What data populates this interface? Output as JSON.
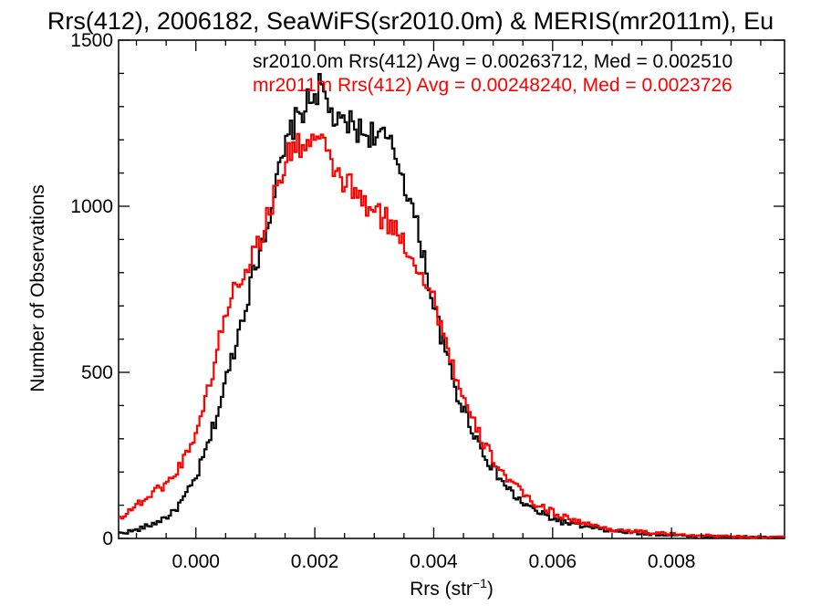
{
  "chart_data": {
    "type": "line",
    "title": "Rrs(412), 2006182, SeaWiFS(sr2010.0m) & MERIS(mr2011m), Eu",
    "xlabel": "Rrs (str",
    "xlabel_sup": "−1",
    "xlabel_close": ")",
    "ylabel": "Number of Observations",
    "xlim": [
      -0.0013,
      0.0099
    ],
    "ylim": [
      0,
      1500
    ],
    "x_ticks": [
      0.0,
      0.002,
      0.004,
      0.006,
      0.008
    ],
    "x_tick_labels": [
      "0.000",
      "0.002",
      "0.004",
      "0.006",
      "0.008"
    ],
    "y_ticks": [
      0,
      500,
      1000,
      1500
    ],
    "y_tick_labels": [
      "0",
      "500",
      "1000",
      "1500"
    ],
    "grid": false,
    "legend_position": "top-right",
    "series": [
      {
        "name": "sr2010.0m Rrs(412) Avg = 0.00263712, Med = 0.002510",
        "color": "#000000",
        "x": [
          -0.0013,
          -0.001,
          -0.0007,
          -0.0004,
          -0.0002,
          0.0,
          0.0002,
          0.0004,
          0.0006,
          0.0008,
          0.001,
          0.0012,
          0.0014,
          0.0016,
          0.0018,
          0.002,
          0.0021,
          0.0022,
          0.0024,
          0.0026,
          0.0028,
          0.003,
          0.0032,
          0.0034,
          0.0036,
          0.0038,
          0.004,
          0.0042,
          0.0044,
          0.0046,
          0.0048,
          0.005,
          0.0052,
          0.0054,
          0.0056,
          0.0058,
          0.006,
          0.0062,
          0.0064,
          0.0066,
          0.0068,
          0.007,
          0.0075,
          0.008,
          0.0085,
          0.009,
          0.0095,
          0.0099
        ],
        "y": [
          15,
          25,
          45,
          75,
          120,
          180,
          280,
          400,
          540,
          680,
          820,
          950,
          1100,
          1230,
          1290,
          1340,
          1360,
          1310,
          1240,
          1250,
          1220,
          1220,
          1200,
          1140,
          1020,
          880,
          700,
          560,
          430,
          350,
          270,
          210,
          160,
          120,
          95,
          75,
          60,
          48,
          40,
          33,
          28,
          22,
          15,
          10,
          7,
          5,
          3,
          2
        ]
      },
      {
        "name": "mr2011m Rrs(412) Avg = 0.00248240, Med = 0.0023726",
        "color": "#ff0000",
        "x": [
          -0.0013,
          -0.001,
          -0.0007,
          -0.0004,
          -0.0002,
          0.0,
          0.0002,
          0.0004,
          0.0006,
          0.0008,
          0.001,
          0.0012,
          0.0014,
          0.0016,
          0.0018,
          0.002,
          0.0021,
          0.0022,
          0.0024,
          0.0026,
          0.0028,
          0.003,
          0.0032,
          0.0034,
          0.0036,
          0.0038,
          0.004,
          0.0042,
          0.0044,
          0.0046,
          0.0048,
          0.005,
          0.0052,
          0.0054,
          0.0056,
          0.0058,
          0.006,
          0.0062,
          0.0064,
          0.0066,
          0.0068,
          0.007,
          0.0075,
          0.008,
          0.0085,
          0.009,
          0.0095,
          0.0099
        ],
        "y": [
          60,
          100,
          140,
          180,
          240,
          320,
          440,
          600,
          740,
          800,
          870,
          960,
          1080,
          1170,
          1190,
          1200,
          1200,
          1150,
          1090,
          1060,
          1010,
          980,
          960,
          920,
          860,
          800,
          720,
          600,
          470,
          370,
          300,
          240,
          190,
          150,
          120,
          95,
          80,
          65,
          52,
          42,
          34,
          27,
          19,
          13,
          9,
          6,
          4,
          3
        ]
      }
    ]
  }
}
